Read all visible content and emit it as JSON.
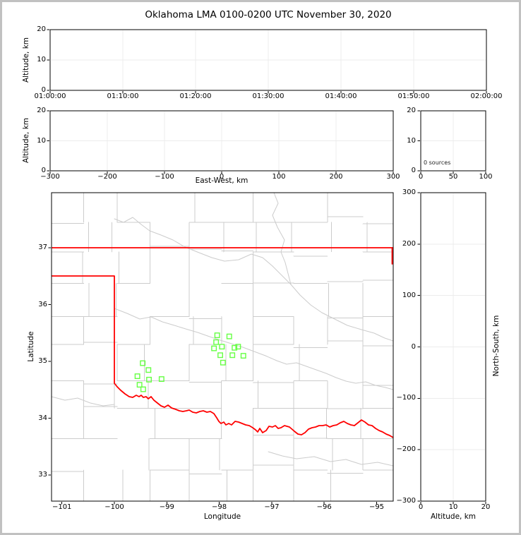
{
  "title": "Oklahoma LMA 0100-0200 UTC November 30, 2020",
  "colors": {
    "state_border": "#ff0000",
    "county_lines": "#cccccc",
    "stations": "#66ff44",
    "grid": "#ececec",
    "frame": "#000000",
    "figure_border": "#c1c1c1"
  },
  "chart_data": [
    {
      "type": "scatter",
      "panel": "time-height",
      "title": "Oklahoma LMA 0100-0200 UTC November 30, 2020",
      "xlabel": "",
      "ylabel": "Altitude, km",
      "xticks": [
        "01:00:00",
        "01:10:00",
        "01:20:00",
        "01:30:00",
        "01:40:00",
        "01:50:00",
        "02:00:00"
      ],
      "yticks": [
        0,
        10,
        20
      ],
      "ylim": [
        0,
        20
      ],
      "grid": true,
      "series": []
    },
    {
      "type": "scatter",
      "panel": "east-west-height",
      "xlabel": "East-West, km",
      "ylabel": "Altitude, km",
      "xticks": [
        -300,
        -200,
        -100,
        0,
        100,
        200,
        300
      ],
      "yticks": [
        0,
        10,
        20
      ],
      "xlim": [
        -300,
        300
      ],
      "ylim": [
        0,
        20
      ],
      "grid": true,
      "series": []
    },
    {
      "type": "histogram",
      "panel": "source-count",
      "annotation": "0 sources",
      "xticks": [
        0,
        50,
        100
      ],
      "yticks": [
        0,
        10,
        20
      ],
      "xlim": [
        0,
        100
      ],
      "ylim": [
        0,
        20
      ],
      "grid": true,
      "series": []
    },
    {
      "type": "scatter",
      "panel": "plan-view-map",
      "xlabel": "Longitude",
      "ylabel": "Latitude",
      "xticks": [
        -101,
        -100,
        -99,
        -98,
        -97,
        -96,
        -95
      ],
      "yticks": [
        33,
        34,
        35,
        36,
        37
      ],
      "xlim": [
        -101.2,
        -94.68
      ],
      "ylim": [
        32.54,
        37.97
      ],
      "grid": false,
      "series": [
        {
          "name": "lma-stations",
          "marker": "open-square",
          "color": "#66ff44",
          "points": [
            [
              -98.04,
              35.46
            ],
            [
              -97.81,
              35.44
            ],
            [
              -98.06,
              35.34
            ],
            [
              -98.1,
              35.23
            ],
            [
              -97.95,
              35.26
            ],
            [
              -97.71,
              35.24
            ],
            [
              -97.64,
              35.26
            ],
            [
              -97.98,
              35.11
            ],
            [
              -97.75,
              35.11
            ],
            [
              -97.54,
              35.1
            ],
            [
              -97.93,
              34.98
            ],
            [
              -99.46,
              34.97
            ],
            [
              -99.35,
              34.85
            ],
            [
              -99.56,
              34.74
            ],
            [
              -99.34,
              34.68
            ],
            [
              -99.1,
              34.69
            ],
            [
              -99.52,
              34.59
            ],
            [
              -99.45,
              34.51
            ]
          ]
        }
      ]
    },
    {
      "type": "scatter",
      "panel": "height-north-south",
      "xlabel": "Altitude, km",
      "ylabel": "North-South, km",
      "xticks": [
        0,
        10,
        20
      ],
      "yticks": [
        -300,
        -200,
        -100,
        0,
        100,
        200,
        300
      ],
      "xlim": [
        0,
        20
      ],
      "ylim": [
        -300,
        300
      ],
      "grid": true,
      "series": []
    }
  ]
}
